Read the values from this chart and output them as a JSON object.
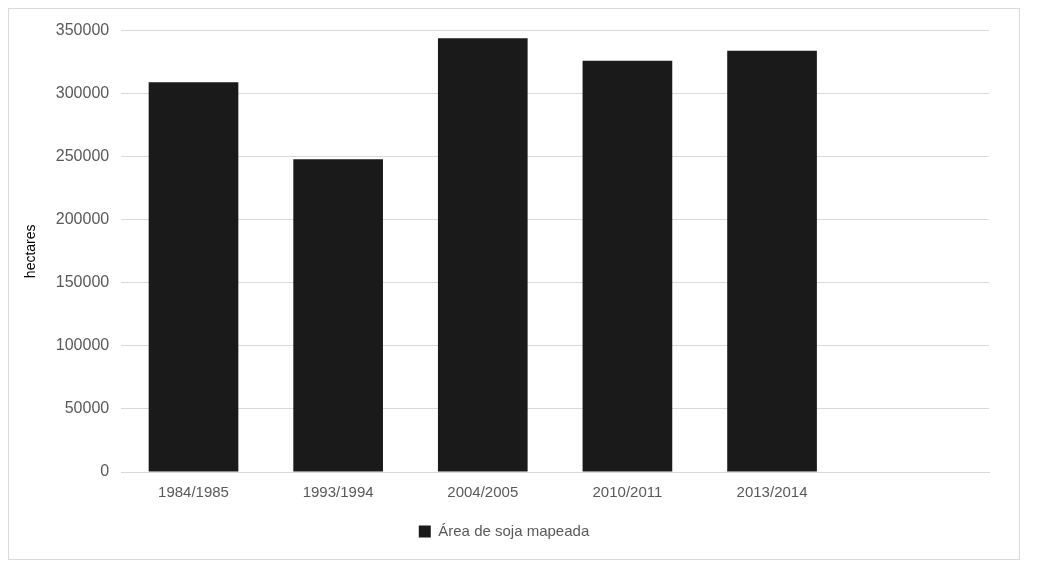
{
  "chart_data": {
    "type": "bar",
    "ylabel": "hectares",
    "categories": [
      "1984/1985",
      "1993/1994",
      "2004/2005",
      "2010/2011",
      "2013/2014",
      null
    ],
    "series": [
      {
        "name": "Área de soja mapeada",
        "color": "#1a1a1a",
        "values": [
          309000,
          248000,
          344000,
          326000,
          334000,
          null
        ]
      }
    ],
    "ylim": [
      0,
      350000
    ],
    "yticks": [
      0,
      50000,
      100000,
      150000,
      200000,
      250000,
      300000,
      350000
    ],
    "grid": "y",
    "legend": "bottom"
  }
}
